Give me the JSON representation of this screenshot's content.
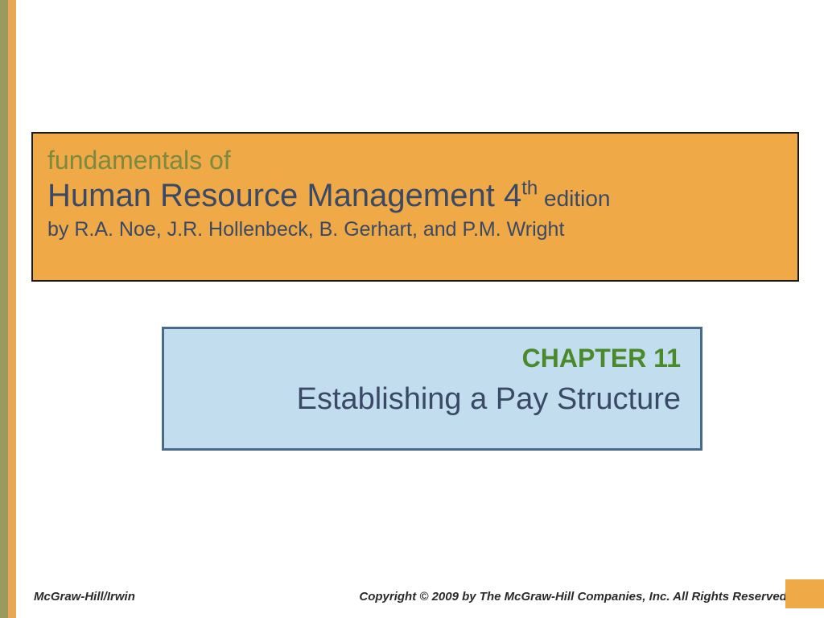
{
  "stripes": {
    "green_color": "#9b9a5e",
    "orange_color": "#e8a757"
  },
  "title_box": {
    "bg_color": "#efa947",
    "border_color": "#1a1a1a",
    "line1": "fundamentals of",
    "line1_color": "#7a8a3e",
    "line1_fontsize": 32,
    "main_title": "Human Resource Management 4",
    "sup": "th",
    "edition": " edition",
    "main_color": "#3a4a66",
    "main_fontsize": 40,
    "authors": "by R.A. Noe, J.R. Hollenbeck, B. Gerhart, and P.M. Wright",
    "authors_fontsize": 25
  },
  "chapter_box": {
    "bg_color": "#c2ddee",
    "border_color": "#4a6a8a",
    "chapter_num": "CHAPTER 11",
    "chapter_num_color": "#4a8a2a",
    "chapter_num_fontsize": 32,
    "chapter_title": "Establishing a Pay Structure",
    "chapter_title_color": "#3a4a66",
    "chapter_title_fontsize": 38
  },
  "footer": {
    "left": "McGraw-Hill/Irwin",
    "right": "Copyright © 2009 by The McGraw-Hill Companies, Inc. All Rights Reserved.",
    "fontsize": 15,
    "color": "#2a2a2a"
  },
  "corner": {
    "color": "#efa947"
  }
}
